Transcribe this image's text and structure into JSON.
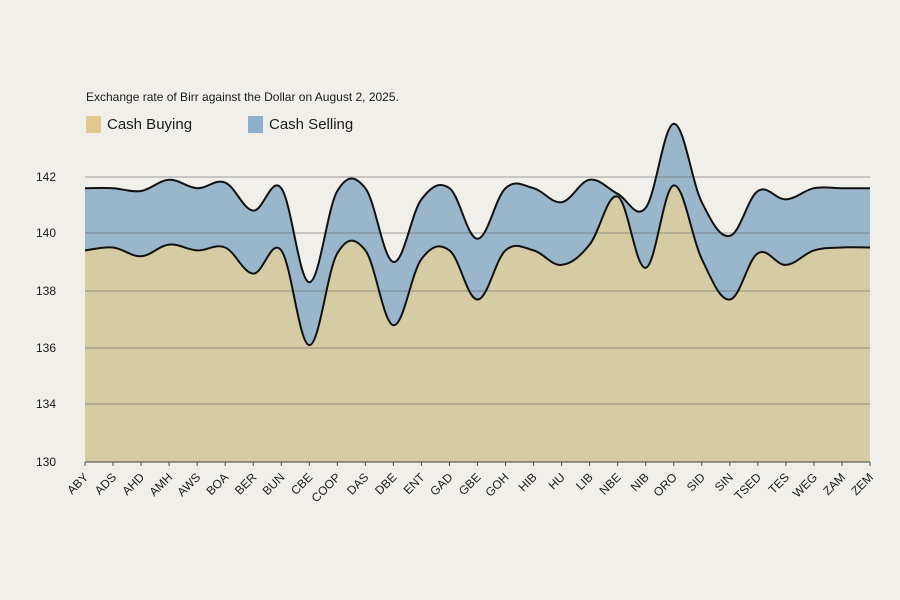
{
  "chart_data": {
    "type": "area",
    "title": "Exchange rate of Birr against the Dollar on August 2, 2025.",
    "xlabel": "",
    "ylabel": "",
    "categories": [
      "ABY",
      "ADS",
      "AHD",
      "AMH",
      "AWS",
      "BOA",
      "BER",
      "BUN",
      "CBE",
      "COOP",
      "DAS",
      "DBE",
      "ENT",
      "GAD",
      "GBE",
      "GOH",
      "HIB",
      "HU",
      "LIB",
      "NBE",
      "NIB",
      "ORO",
      "SID",
      "SIN",
      "TSED",
      "TES",
      "WEG",
      "ZAM",
      "ZEM"
    ],
    "yticks": [
      130,
      134,
      136,
      138,
      140,
      142
    ],
    "grid": true,
    "legend_position": "top-left",
    "series": [
      {
        "name": "Cash Selling",
        "color": "#9ab6cb",
        "values": [
          141.6,
          141.6,
          141.5,
          141.9,
          141.6,
          141.8,
          140.8,
          141.6,
          138.3,
          141.5,
          141.6,
          139.0,
          141.2,
          141.6,
          139.8,
          141.6,
          141.6,
          141.1,
          141.9,
          141.4,
          140.9,
          143.9,
          141.1,
          139.9,
          141.5,
          141.2,
          141.6,
          141.6,
          141.6
        ]
      },
      {
        "name": "Cash Buying",
        "color": "#d6cca4",
        "values": [
          139.4,
          139.5,
          139.2,
          139.6,
          139.4,
          139.5,
          138.6,
          139.4,
          136.1,
          139.3,
          139.4,
          136.8,
          139.1,
          139.4,
          137.7,
          139.4,
          139.4,
          138.9,
          139.6,
          141.3,
          138.8,
          141.7,
          139.1,
          137.7,
          139.3,
          138.9,
          139.4,
          139.5,
          139.5
        ]
      }
    ]
  }
}
